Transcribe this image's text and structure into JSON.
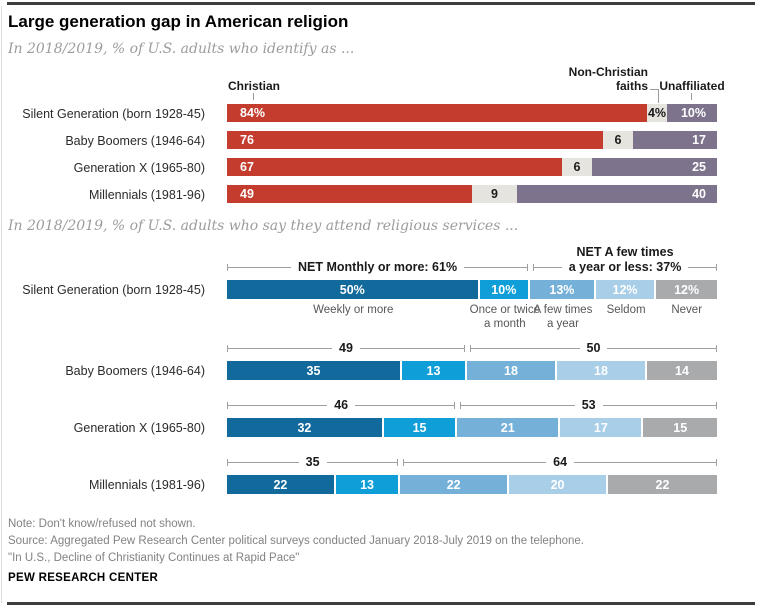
{
  "header": {
    "title": "Large generation gap in American religion"
  },
  "chart_data": [
    {
      "type": "bar",
      "orientation": "horizontal",
      "stacked": true,
      "subtitle": "In 2018/2019, % of U.S. adults who identify as ...",
      "categories": [
        "Silent Generation (born 1928-45)",
        "Baby Boomers (1946-64)",
        "Generation X (1965-80)",
        "Millennials (1981-96)"
      ],
      "series": [
        {
          "name": "Christian",
          "values": [
            84,
            76,
            67,
            49
          ]
        },
        {
          "name": "Non-Christian faiths",
          "values": [
            4,
            6,
            6,
            9
          ]
        },
        {
          "name": "Unaffiliated",
          "values": [
            10,
            17,
            25,
            40
          ]
        }
      ],
      "value_labels": [
        [
          "84%",
          "4%",
          "10%"
        ],
        [
          "76",
          "6",
          "17"
        ],
        [
          "67",
          "6",
          "25"
        ],
        [
          "49",
          "9",
          "40"
        ]
      ],
      "col_headers": [
        "Christian",
        "Non-Christian\nfaiths",
        "Unaffiliated"
      ],
      "colors": [
        "#c43c2e",
        "#e5e4df",
        "#7d738c"
      ],
      "value_text_colors": [
        "#ffffff",
        "#1a1a1a",
        "#ffffff"
      ],
      "legend_position": "top",
      "grid": false
    },
    {
      "type": "bar",
      "orientation": "horizontal",
      "stacked": true,
      "subtitle": "In 2018/2019, % of U.S. adults who say they attend religious services ...",
      "categories": [
        "Silent Generation (born 1928-45)",
        "Baby Boomers (1946-64)",
        "Generation X (1965-80)",
        "Millennials (1981-96)"
      ],
      "series": [
        {
          "name": "Weekly or more",
          "values": [
            50,
            35,
            32,
            22
          ]
        },
        {
          "name": "Once or twice a month",
          "values": [
            10,
            13,
            15,
            13
          ]
        },
        {
          "name": "A few times a year",
          "values": [
            13,
            18,
            21,
            22
          ]
        },
        {
          "name": "Seldom",
          "values": [
            12,
            18,
            17,
            20
          ]
        },
        {
          "name": "Never",
          "values": [
            12,
            14,
            15,
            22
          ]
        }
      ],
      "value_labels": [
        [
          "50%",
          "10%",
          "13%",
          "12%",
          "12%"
        ],
        [
          "35",
          "13",
          "18",
          "18",
          "14"
        ],
        [
          "32",
          "15",
          "21",
          "17",
          "15"
        ],
        [
          "22",
          "13",
          "22",
          "20",
          "22"
        ]
      ],
      "segment_axis_labels": [
        "Weekly or more",
        "Once or twice\na month",
        "A few times\na year",
        "Seldom",
        "Never"
      ],
      "net_brackets": [
        {
          "left": [
            "NET Monthly or more: 61%"
          ],
          "right": [
            "NET A few times",
            "a year or less: 37%"
          ]
        },
        {
          "left": [
            "49"
          ],
          "right": [
            "50"
          ]
        },
        {
          "left": [
            "46"
          ],
          "right": [
            "53"
          ]
        },
        {
          "left": [
            "35"
          ],
          "right": [
            "64"
          ]
        }
      ],
      "colors": [
        "#12699b",
        "#0f9ed7",
        "#75b0d9",
        "#a8cee8",
        "#a8aaac"
      ],
      "value_text_colors": [
        "#ffffff",
        "#ffffff",
        "#ffffff",
        "#ffffff",
        "#ffffff"
      ],
      "grid": false
    }
  ],
  "footer": {
    "note": "Note: Don't know/refused not shown.",
    "source": "Source: Aggregated Pew Research Center political surveys conducted January 2018-July 2019 on the telephone.",
    "quote": "\"In U.S., Decline of Christianity Continues at Rapid Pace\"",
    "brand": "PEW RESEARCH CENTER"
  }
}
